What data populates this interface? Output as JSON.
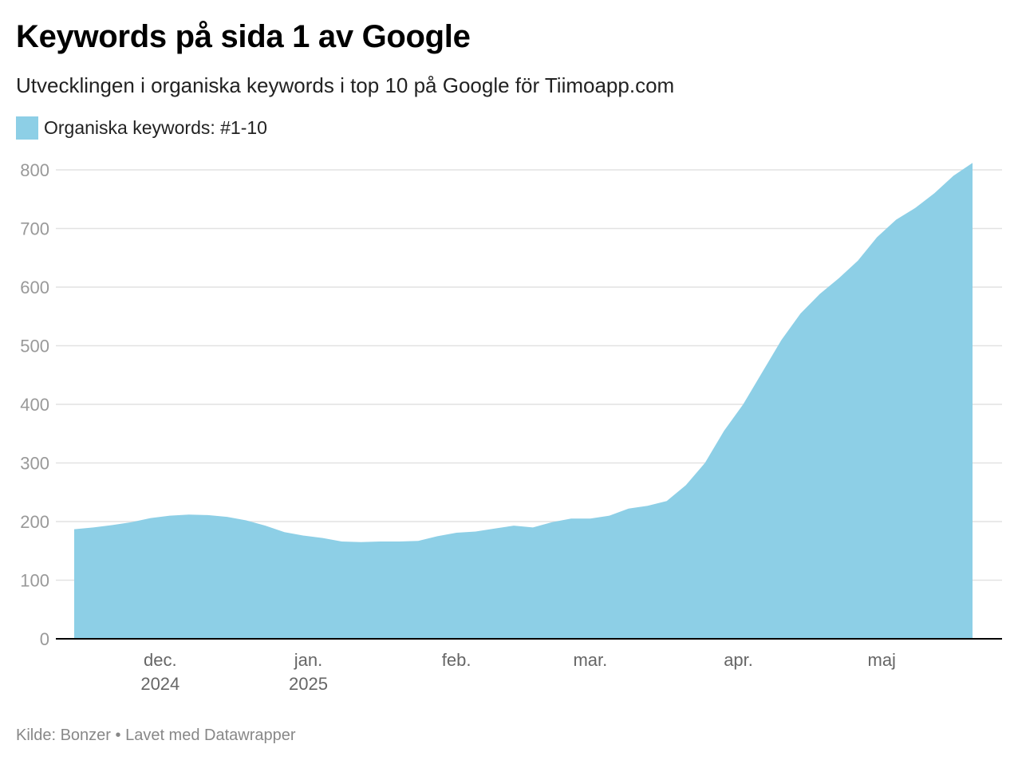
{
  "header": {
    "title": "Keywords på sida 1 av Google",
    "subtitle": "Utvecklingen i organiska keywords i top 10 på Google för Tiimoapp.com"
  },
  "footer": {
    "source": "Kilde: Bonzer • Lavet med Datawrapper"
  },
  "chart_data": {
    "type": "area",
    "title": "Keywords på sida 1 av Google",
    "subtitle": "Utvecklingen i organiska keywords i top 10 på Google för Tiimoapp.com",
    "xlabel": "",
    "ylabel": "",
    "ylim": [
      0,
      800
    ],
    "xlim": [
      "2024-11-13",
      "2025-05-23"
    ],
    "grid": true,
    "legend_position": "top-left",
    "colors": {
      "area": "#8dcfe6",
      "gridline": "#e2e2e2",
      "baseline": "#000000"
    },
    "y_ticks": [
      0,
      100,
      200,
      300,
      400,
      500,
      600,
      700,
      800
    ],
    "x_ticks": [
      {
        "date": "2024-12-01",
        "label": "dec.",
        "sublabel": "2024"
      },
      {
        "date": "2025-01-01",
        "label": "jan.",
        "sublabel": "2025"
      },
      {
        "date": "2025-02-01",
        "label": "feb.",
        "sublabel": ""
      },
      {
        "date": "2025-03-01",
        "label": "mar.",
        "sublabel": ""
      },
      {
        "date": "2025-04-01",
        "label": "apr.",
        "sublabel": ""
      },
      {
        "date": "2025-05-01",
        "label": "maj",
        "sublabel": ""
      }
    ],
    "series": [
      {
        "name": "Organiska keywords: #1-10",
        "points": [
          {
            "x": "2024-11-13",
            "y": 187
          },
          {
            "x": "2024-11-17",
            "y": 190
          },
          {
            "x": "2024-11-21",
            "y": 194
          },
          {
            "x": "2024-11-25",
            "y": 199
          },
          {
            "x": "2024-11-29",
            "y": 206
          },
          {
            "x": "2024-12-03",
            "y": 210
          },
          {
            "x": "2024-12-07",
            "y": 212
          },
          {
            "x": "2024-12-11",
            "y": 211
          },
          {
            "x": "2024-12-15",
            "y": 208
          },
          {
            "x": "2024-12-19",
            "y": 202
          },
          {
            "x": "2024-12-23",
            "y": 193
          },
          {
            "x": "2024-12-27",
            "y": 182
          },
          {
            "x": "2024-12-31",
            "y": 176
          },
          {
            "x": "2025-01-04",
            "y": 172
          },
          {
            "x": "2025-01-08",
            "y": 166
          },
          {
            "x": "2025-01-12",
            "y": 165
          },
          {
            "x": "2025-01-16",
            "y": 166
          },
          {
            "x": "2025-01-20",
            "y": 166
          },
          {
            "x": "2025-01-24",
            "y": 167
          },
          {
            "x": "2025-01-28",
            "y": 175
          },
          {
            "x": "2025-02-01",
            "y": 181
          },
          {
            "x": "2025-02-05",
            "y": 183
          },
          {
            "x": "2025-02-09",
            "y": 188
          },
          {
            "x": "2025-02-13",
            "y": 193
          },
          {
            "x": "2025-02-17",
            "y": 190
          },
          {
            "x": "2025-02-21",
            "y": 199
          },
          {
            "x": "2025-02-25",
            "y": 205
          },
          {
            "x": "2025-03-01",
            "y": 205
          },
          {
            "x": "2025-03-05",
            "y": 210
          },
          {
            "x": "2025-03-09",
            "y": 222
          },
          {
            "x": "2025-03-13",
            "y": 227
          },
          {
            "x": "2025-03-17",
            "y": 235
          },
          {
            "x": "2025-03-21",
            "y": 262
          },
          {
            "x": "2025-03-25",
            "y": 300
          },
          {
            "x": "2025-03-29",
            "y": 355
          },
          {
            "x": "2025-04-02",
            "y": 400
          },
          {
            "x": "2025-04-06",
            "y": 455
          },
          {
            "x": "2025-04-10",
            "y": 510
          },
          {
            "x": "2025-04-14",
            "y": 555
          },
          {
            "x": "2025-04-18",
            "y": 588
          },
          {
            "x": "2025-04-22",
            "y": 615
          },
          {
            "x": "2025-04-26",
            "y": 645
          },
          {
            "x": "2025-04-30",
            "y": 685
          },
          {
            "x": "2025-05-04",
            "y": 715
          },
          {
            "x": "2025-05-08",
            "y": 735
          },
          {
            "x": "2025-05-12",
            "y": 760
          },
          {
            "x": "2025-05-16",
            "y": 790
          },
          {
            "x": "2025-05-20",
            "y": 812
          }
        ]
      }
    ]
  }
}
